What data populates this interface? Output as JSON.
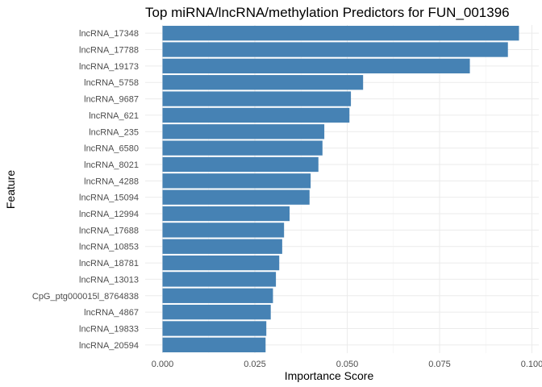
{
  "chart_data": {
    "type": "bar",
    "orientation": "horizontal",
    "title": "Top miRNA/lncRNA/methylation Predictors for FUN_001396",
    "xlabel": "Importance Score",
    "ylabel": "Feature",
    "xlim": [
      0,
      0.1
    ],
    "x_ticks": [
      0.0,
      0.025,
      0.05,
      0.075,
      0.1
    ],
    "x_tick_labels": [
      "0.000",
      "0.025",
      "0.050",
      "0.075",
      "0.100"
    ],
    "grid": true,
    "legend": "none",
    "bar_color": "#4682B4",
    "categories": [
      "lncRNA_17348",
      "lncRNA_17788",
      "lncRNA_19173",
      "lncRNA_5758",
      "lncRNA_9687",
      "lncRNA_621",
      "lncRNA_235",
      "lncRNA_6580",
      "lncRNA_8021",
      "lncRNA_4288",
      "lncRNA_15094",
      "lncRNA_12994",
      "lncRNA_17688",
      "lncRNA_10853",
      "lncRNA_18781",
      "lncRNA_13013",
      "CpG_ptg000015l_8764838",
      "lncRNA_4867",
      "lncRNA_19833",
      "lncRNA_20594"
    ],
    "values": [
      0.0965,
      0.0935,
      0.0832,
      0.0543,
      0.051,
      0.0506,
      0.0438,
      0.0433,
      0.0422,
      0.0401,
      0.0398,
      0.0344,
      0.0329,
      0.0324,
      0.0316,
      0.0307,
      0.0299,
      0.0293,
      0.0281,
      0.0279
    ]
  }
}
